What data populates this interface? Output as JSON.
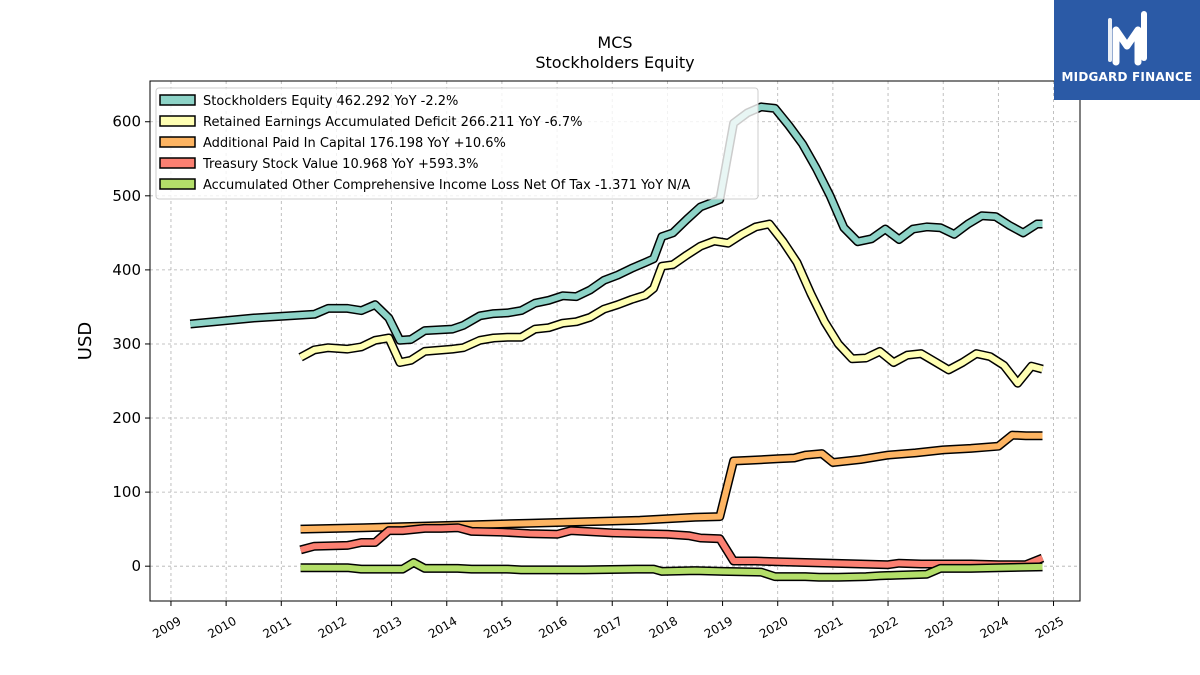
{
  "brand": {
    "name": "MIDGARD FINANCE",
    "color": "#2b5aa6",
    "icon": "midgard-logo-icon"
  },
  "chart_data": {
    "type": "line",
    "title": "MCS",
    "subtitle": "Stockholders  Equity",
    "ylabel": "USD",
    "xlabel": "",
    "ylim": [
      -47,
      655
    ],
    "xlim": [
      2008.62,
      2025.48
    ],
    "yticks": [
      0,
      100,
      200,
      300,
      400,
      500,
      600
    ],
    "xticks": [
      "2009",
      "2010",
      "2011",
      "2012",
      "2013",
      "2014",
      "2015",
      "2016",
      "2017",
      "2018",
      "2019",
      "2020",
      "2021",
      "2022",
      "2023",
      "2024",
      "2025"
    ],
    "grid": true,
    "legend_position": "top-left",
    "series": [
      {
        "name": "Stockholders Equity  462.292 YoY -2.2%",
        "color": "#8dd3c7",
        "points": [
          [
            2009.35,
            327
          ],
          [
            2010.5,
            335
          ],
          [
            2011.6,
            340
          ],
          [
            2011.85,
            348
          ],
          [
            2012.2,
            348
          ],
          [
            2012.45,
            345
          ],
          [
            2012.7,
            353
          ],
          [
            2012.95,
            335
          ],
          [
            2013.15,
            305
          ],
          [
            2013.35,
            306
          ],
          [
            2013.6,
            318
          ],
          [
            2014.1,
            320
          ],
          [
            2014.3,
            325
          ],
          [
            2014.6,
            338
          ],
          [
            2014.85,
            341
          ],
          [
            2015.1,
            342
          ],
          [
            2015.35,
            345
          ],
          [
            2015.6,
            355
          ],
          [
            2015.85,
            359
          ],
          [
            2016.1,
            365
          ],
          [
            2016.35,
            364
          ],
          [
            2016.6,
            373
          ],
          [
            2016.85,
            386
          ],
          [
            2017.1,
            393
          ],
          [
            2017.35,
            402
          ],
          [
            2017.6,
            410
          ],
          [
            2017.75,
            415
          ],
          [
            2017.9,
            445
          ],
          [
            2018.1,
            450
          ],
          [
            2018.35,
            468
          ],
          [
            2018.6,
            485
          ],
          [
            2018.85,
            492
          ],
          [
            2018.95,
            495
          ],
          [
            2019.2,
            598
          ],
          [
            2019.45,
            612
          ],
          [
            2019.7,
            620
          ],
          [
            2019.95,
            618
          ],
          [
            2020.2,
            595
          ],
          [
            2020.45,
            570
          ],
          [
            2020.7,
            537
          ],
          [
            2020.95,
            500
          ],
          [
            2021.2,
            457
          ],
          [
            2021.45,
            438
          ],
          [
            2021.7,
            442
          ],
          [
            2021.95,
            455
          ],
          [
            2022.2,
            441
          ],
          [
            2022.45,
            455
          ],
          [
            2022.7,
            458
          ],
          [
            2022.95,
            457
          ],
          [
            2023.2,
            448
          ],
          [
            2023.45,
            462
          ],
          [
            2023.7,
            473
          ],
          [
            2023.95,
            472
          ],
          [
            2024.2,
            460
          ],
          [
            2024.45,
            450
          ],
          [
            2024.7,
            462
          ],
          [
            2024.8,
            462
          ]
        ]
      },
      {
        "name": "Retained Earnings Accumulated Deficit  266.211 YoY -6.7%",
        "color": "#ffffb3",
        "points": [
          [
            2011.35,
            282
          ],
          [
            2011.6,
            292
          ],
          [
            2011.85,
            295
          ],
          [
            2012.2,
            293
          ],
          [
            2012.45,
            296
          ],
          [
            2012.7,
            305
          ],
          [
            2012.95,
            308
          ],
          [
            2013.15,
            275
          ],
          [
            2013.35,
            278
          ],
          [
            2013.6,
            290
          ],
          [
            2014.1,
            293
          ],
          [
            2014.3,
            295
          ],
          [
            2014.6,
            305
          ],
          [
            2014.85,
            308
          ],
          [
            2015.1,
            309
          ],
          [
            2015.35,
            309
          ],
          [
            2015.6,
            320
          ],
          [
            2015.85,
            322
          ],
          [
            2016.1,
            328
          ],
          [
            2016.35,
            330
          ],
          [
            2016.6,
            336
          ],
          [
            2016.85,
            347
          ],
          [
            2017.1,
            353
          ],
          [
            2017.35,
            360
          ],
          [
            2017.6,
            366
          ],
          [
            2017.75,
            375
          ],
          [
            2017.9,
            405
          ],
          [
            2018.1,
            407
          ],
          [
            2018.35,
            420
          ],
          [
            2018.6,
            432
          ],
          [
            2018.85,
            439
          ],
          [
            2019.1,
            436
          ],
          [
            2019.35,
            448
          ],
          [
            2019.6,
            458
          ],
          [
            2019.85,
            462
          ],
          [
            2020.1,
            438
          ],
          [
            2020.35,
            410
          ],
          [
            2020.6,
            368
          ],
          [
            2020.85,
            330
          ],
          [
            2021.1,
            300
          ],
          [
            2021.35,
            280
          ],
          [
            2021.6,
            281
          ],
          [
            2021.85,
            290
          ],
          [
            2022.1,
            275
          ],
          [
            2022.35,
            285
          ],
          [
            2022.6,
            287
          ],
          [
            2022.85,
            276
          ],
          [
            2023.1,
            265
          ],
          [
            2023.35,
            275
          ],
          [
            2023.6,
            287
          ],
          [
            2023.85,
            283
          ],
          [
            2024.1,
            271
          ],
          [
            2024.35,
            247
          ],
          [
            2024.6,
            270
          ],
          [
            2024.8,
            266
          ]
        ]
      },
      {
        "name": "Additional Paid In Capital  176.198 YoY +10.6%",
        "color": "#fdb462",
        "points": [
          [
            2011.35,
            50
          ],
          [
            2012.5,
            52
          ],
          [
            2013.5,
            54
          ],
          [
            2014.5,
            56
          ],
          [
            2015.5,
            58
          ],
          [
            2016.5,
            60
          ],
          [
            2017.5,
            62
          ],
          [
            2018.5,
            66
          ],
          [
            2018.95,
            67
          ],
          [
            2019.2,
            142
          ],
          [
            2019.5,
            143
          ],
          [
            2020,
            145
          ],
          [
            2020.3,
            146
          ],
          [
            2020.5,
            150
          ],
          [
            2020.8,
            152
          ],
          [
            2021.0,
            140
          ],
          [
            2021.5,
            144
          ],
          [
            2022,
            150
          ],
          [
            2022.5,
            153
          ],
          [
            2023,
            157
          ],
          [
            2023.5,
            159
          ],
          [
            2024,
            162
          ],
          [
            2024.25,
            177
          ],
          [
            2024.5,
            176
          ],
          [
            2024.8,
            176
          ]
        ]
      },
      {
        "name": "Treasury Stock Value  10.968 YoY +593.3%",
        "color": "#fb8072",
        "points": [
          [
            2011.35,
            22
          ],
          [
            2011.6,
            27
          ],
          [
            2012.2,
            28
          ],
          [
            2012.45,
            32
          ],
          [
            2012.7,
            32
          ],
          [
            2012.95,
            48
          ],
          [
            2013.2,
            48
          ],
          [
            2013.6,
            51
          ],
          [
            2013.9,
            51
          ],
          [
            2014.2,
            52
          ],
          [
            2014.45,
            47
          ],
          [
            2015.0,
            46
          ],
          [
            2015.5,
            44
          ],
          [
            2016.0,
            43
          ],
          [
            2016.25,
            48
          ],
          [
            2016.5,
            47
          ],
          [
            2017.0,
            45
          ],
          [
            2017.5,
            44
          ],
          [
            2018.0,
            43
          ],
          [
            2018.4,
            41
          ],
          [
            2018.6,
            38
          ],
          [
            2018.95,
            37
          ],
          [
            2019.2,
            7
          ],
          [
            2019.6,
            7
          ],
          [
            2020.0,
            6
          ],
          [
            2020.5,
            5
          ],
          [
            2021.0,
            4
          ],
          [
            2021.5,
            3
          ],
          [
            2022.0,
            2
          ],
          [
            2022.2,
            4
          ],
          [
            2022.6,
            3
          ],
          [
            2023.0,
            3
          ],
          [
            2023.5,
            3
          ],
          [
            2024.0,
            2
          ],
          [
            2024.5,
            2
          ],
          [
            2024.8,
            11
          ]
        ]
      },
      {
        "name": "Accumulated Other Comprehensive Income Loss Net Of Tax  -1.371 YoY N/A",
        "color": "#b3de69",
        "points": [
          [
            2011.35,
            -2
          ],
          [
            2012.2,
            -2
          ],
          [
            2012.45,
            -4
          ],
          [
            2012.95,
            -4
          ],
          [
            2013.2,
            -4
          ],
          [
            2013.4,
            5
          ],
          [
            2013.6,
            -3
          ],
          [
            2014.2,
            -3
          ],
          [
            2014.45,
            -4
          ],
          [
            2015.1,
            -4
          ],
          [
            2015.35,
            -5
          ],
          [
            2016.5,
            -5
          ],
          [
            2017.5,
            -4
          ],
          [
            2017.75,
            -4
          ],
          [
            2017.9,
            -7
          ],
          [
            2018.5,
            -6
          ],
          [
            2019.0,
            -7
          ],
          [
            2019.7,
            -8
          ],
          [
            2019.95,
            -14
          ],
          [
            2020.5,
            -14
          ],
          [
            2020.75,
            -15
          ],
          [
            2021.1,
            -15
          ],
          [
            2021.6,
            -14
          ],
          [
            2021.85,
            -13
          ],
          [
            2022.2,
            -12
          ],
          [
            2022.7,
            -11
          ],
          [
            2022.95,
            -3
          ],
          [
            2023.5,
            -3
          ],
          [
            2024.0,
            -2
          ],
          [
            2024.8,
            -1
          ]
        ]
      }
    ]
  }
}
